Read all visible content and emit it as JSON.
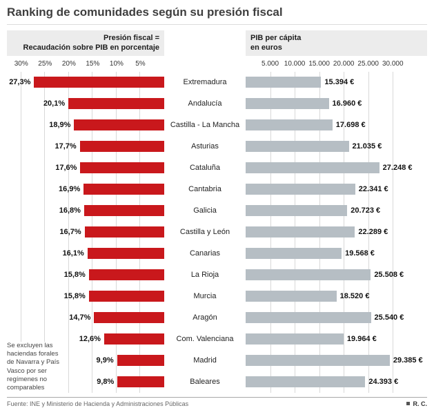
{
  "title": "Ranking de comunidades según su presión fiscal",
  "left_header": {
    "line1": "Presión fiscal =",
    "line2": "Recaudación sobre PIB en porcentaje"
  },
  "right_header": {
    "line1": "PIB per cápita",
    "line2": "en euros"
  },
  "note": "Se excluyen las haciendas forales de Navarra y País Vasco por ser regímenes no comparables",
  "footer": {
    "source": "Fuente: INE y Ministerio de Hacienda y Administraciones Públicas",
    "credit": "R. C."
  },
  "colors": {
    "presion_bar": "#c9181c",
    "pib_bar": "#b6bec4",
    "gridline": "#d8d8d8",
    "header_bg": "#ececec"
  },
  "chart_data": {
    "type": "bar",
    "orientation": "horizontal",
    "title": "Ranking de comunidades según su presión fiscal",
    "legend_position": "none",
    "grid": true,
    "categories": [
      "Extremadura",
      "Andalucía",
      "Castilla - La Mancha",
      "Asturias",
      "Cataluña",
      "Cantabria",
      "Galicia",
      "Castilla y León",
      "Canarias",
      "La Rioja",
      "Murcia",
      "Aragón",
      "Com. Valenciana",
      "Madrid",
      "Baleares"
    ],
    "series": [
      {
        "name": "Presión fiscal (recaudación sobre PIB en porcentaje)",
        "direction": "left",
        "values": [
          27.3,
          20.1,
          18.9,
          17.7,
          17.6,
          16.9,
          16.8,
          16.7,
          16.1,
          15.8,
          15.8,
          14.7,
          12.6,
          9.9,
          9.8
        ],
        "labels": [
          "27,3%",
          "20,1%",
          "18,9%",
          "17,7%",
          "17,6%",
          "16,9%",
          "16,8%",
          "16,7%",
          "16,1%",
          "15,8%",
          "15,8%",
          "14,7%",
          "12,6%",
          "9,9%",
          "9,8%"
        ],
        "ticks": [
          {
            "label": "30%",
            "value": 30
          },
          {
            "label": "25%",
            "value": 25
          },
          {
            "label": "20%",
            "value": 20
          },
          {
            "label": "15%",
            "value": 15
          },
          {
            "label": "10%",
            "value": 10
          },
          {
            "label": "5%",
            "value": 5
          }
        ],
        "scale_max": 33,
        "axis_range": [
          0,
          30
        ],
        "color": "#c9181c"
      },
      {
        "name": "PIB per cápita en euros",
        "direction": "right",
        "values": [
          15394,
          16960,
          17698,
          21035,
          27248,
          22341,
          20723,
          22289,
          19568,
          25508,
          18520,
          25540,
          19964,
          29385,
          24393
        ],
        "labels": [
          "15.394 €",
          "16.960 €",
          "17.698 €",
          "21.035 €",
          "27.248 €",
          "22.341 €",
          "20.723 €",
          "22.289 €",
          "19.568 €",
          "25.508 €",
          "18.520 €",
          "25.540 €",
          "19.964 €",
          "29.385 €",
          "24.393 €"
        ],
        "ticks": [
          {
            "label": "5.000",
            "value": 5000
          },
          {
            "label": "10.000",
            "value": 10000
          },
          {
            "label": "15.000",
            "value": 15000
          },
          {
            "label": "20.000",
            "value": 20000
          },
          {
            "label": "25.000",
            "value": 25000
          },
          {
            "label": "30.000",
            "value": 30000
          }
        ],
        "scale_max": 37000,
        "axis_range": [
          0,
          30000
        ],
        "color": "#b6bec4"
      }
    ]
  }
}
